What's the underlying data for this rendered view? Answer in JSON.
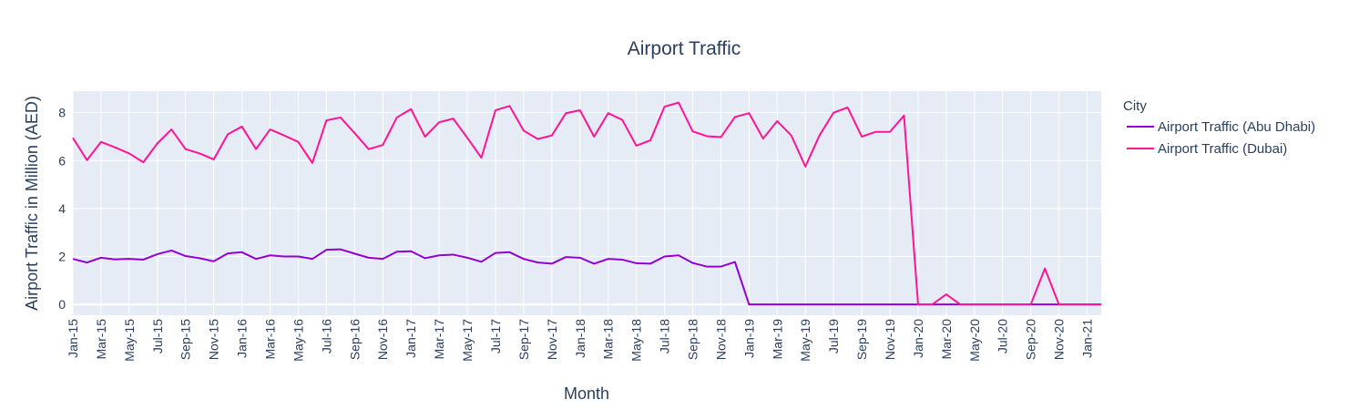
{
  "chart_data": {
    "type": "line",
    "title": "Airport Traffic",
    "xlabel": "Month",
    "ylabel": "Airport Traffic in Million (AED)",
    "legend_title": "City",
    "legend_position": "right",
    "grid": true,
    "x_range": [
      "2015-01",
      "2021-02"
    ],
    "ylim": [
      -0.45,
      8.9
    ],
    "y_ticks": [
      0,
      2,
      4,
      6,
      8
    ],
    "x_tick_labels": [
      "Jan-15",
      "Mar-15",
      "May-15",
      "Jul-15",
      "Sep-15",
      "Nov-15",
      "Jan-16",
      "Mar-16",
      "May-16",
      "Jul-16",
      "Sep-16",
      "Nov-16",
      "Jan-17",
      "Mar-17",
      "May-17",
      "Jul-17",
      "Sep-17",
      "Nov-17",
      "Jan-18",
      "Mar-18",
      "May-18",
      "Jul-18",
      "Sep-18",
      "Nov-18",
      "Jan-19",
      "Mar-19",
      "May-19",
      "Jul-19",
      "Sep-19",
      "Nov-19",
      "Jan-20",
      "Mar-20",
      "May-20",
      "Jul-20",
      "Sep-20",
      "Nov-20",
      "Jan-21"
    ],
    "x": [
      "2015-01",
      "2015-02",
      "2015-03",
      "2015-04",
      "2015-05",
      "2015-06",
      "2015-07",
      "2015-08",
      "2015-09",
      "2015-10",
      "2015-11",
      "2015-12",
      "2016-01",
      "2016-02",
      "2016-03",
      "2016-04",
      "2016-05",
      "2016-06",
      "2016-07",
      "2016-08",
      "2016-09",
      "2016-10",
      "2016-11",
      "2016-12",
      "2017-01",
      "2017-02",
      "2017-03",
      "2017-04",
      "2017-05",
      "2017-06",
      "2017-07",
      "2017-08",
      "2017-09",
      "2017-10",
      "2017-11",
      "2017-12",
      "2018-01",
      "2018-02",
      "2018-03",
      "2018-04",
      "2018-05",
      "2018-06",
      "2018-07",
      "2018-08",
      "2018-09",
      "2018-10",
      "2018-11",
      "2018-12",
      "2019-01",
      "2019-02",
      "2019-03",
      "2019-04",
      "2019-05",
      "2019-06",
      "2019-07",
      "2019-08",
      "2019-09",
      "2019-10",
      "2019-11",
      "2019-12",
      "2020-01",
      "2020-02",
      "2020-03",
      "2020-04",
      "2020-05",
      "2020-06",
      "2020-07",
      "2020-08",
      "2020-09",
      "2020-10",
      "2020-11",
      "2020-12",
      "2021-01",
      "2021-02"
    ],
    "series": [
      {
        "name": "Airport Traffic (Abu Dhabi)",
        "color": "#9400d3",
        "values": [
          1.9,
          1.75,
          1.95,
          1.88,
          1.9,
          1.87,
          2.1,
          2.25,
          2.02,
          1.93,
          1.8,
          2.13,
          2.18,
          1.9,
          2.05,
          2.0,
          2.0,
          1.9,
          2.28,
          2.3,
          2.12,
          1.95,
          1.9,
          2.2,
          2.22,
          1.93,
          2.05,
          2.08,
          1.95,
          1.78,
          2.15,
          2.18,
          1.9,
          1.75,
          1.7,
          1.98,
          1.95,
          1.7,
          1.9,
          1.87,
          1.72,
          1.7,
          2.0,
          2.05,
          1.73,
          1.58,
          1.58,
          1.77,
          0,
          0,
          0,
          0,
          0,
          0,
          0,
          0,
          0,
          0,
          0,
          0,
          0,
          0,
          0,
          0,
          0,
          0,
          0,
          0,
          0,
          0,
          0,
          0,
          0,
          0
        ]
      },
      {
        "name": "Airport Traffic (Dubai)",
        "color": "#ff1493",
        "values": [
          6.95,
          6.02,
          6.78,
          6.55,
          6.3,
          5.93,
          6.72,
          7.3,
          6.48,
          6.3,
          6.05,
          7.1,
          7.42,
          6.48,
          7.3,
          7.05,
          6.78,
          5.9,
          7.68,
          7.8,
          7.15,
          6.48,
          6.65,
          7.8,
          8.15,
          7.0,
          7.6,
          7.75,
          6.95,
          6.12,
          8.1,
          8.28,
          7.25,
          6.9,
          7.05,
          7.98,
          8.1,
          7.0,
          7.98,
          7.7,
          6.62,
          6.85,
          8.25,
          8.42,
          7.22,
          7.02,
          6.98,
          7.82,
          7.98,
          6.92,
          7.65,
          7.05,
          5.75,
          7.05,
          8.0,
          8.22,
          7.0,
          7.2,
          7.2,
          7.88,
          0,
          0,
          0.42,
          0,
          0,
          0,
          0,
          0,
          0,
          1.5,
          0,
          0,
          0,
          0
        ]
      }
    ]
  }
}
